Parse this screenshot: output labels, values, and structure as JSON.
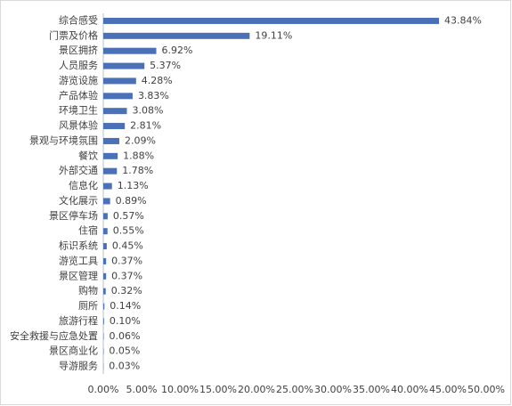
{
  "chart_data": {
    "type": "bar",
    "orientation": "horizontal",
    "categories": [
      "综合感受",
      "门票及价格",
      "景区拥挤",
      "人员服务",
      "游览设施",
      "产品体验",
      "环境卫生",
      "风景体验",
      "景观与环境氛围",
      "餐饮",
      "外部交通",
      "信息化",
      "文化展示",
      "景区停车场",
      "住宿",
      "标识系统",
      "游览工具",
      "景区管理",
      "购物",
      "厕所",
      "旅游行程",
      "安全救援与应急处置",
      "景区商业化",
      "导游服务"
    ],
    "values": [
      43.84,
      19.11,
      6.92,
      5.37,
      4.28,
      3.83,
      3.08,
      2.81,
      2.09,
      1.88,
      1.78,
      1.13,
      0.89,
      0.57,
      0.55,
      0.45,
      0.37,
      0.37,
      0.32,
      0.14,
      0.1,
      0.06,
      0.05,
      0.03
    ],
    "value_labels": [
      "43.84%",
      "19.11%",
      "6.92%",
      "5.37%",
      "4.28%",
      "3.83%",
      "3.08%",
      "2.81%",
      "2.09%",
      "1.88%",
      "1.78%",
      "1.13%",
      "0.89%",
      "0.57%",
      "0.55%",
      "0.45%",
      "0.37%",
      "0.37%",
      "0.32%",
      "0.14%",
      "0.10%",
      "0.06%",
      "0.05%",
      "0.03%"
    ],
    "color": "#4a70b8",
    "xlim": [
      0,
      50
    ],
    "xticks": [
      {
        "value": 0,
        "label": "0.00%"
      },
      {
        "value": 5,
        "label": "5.00%"
      },
      {
        "value": 10,
        "label": "10.00%"
      },
      {
        "value": 15,
        "label": "15.00%"
      },
      {
        "value": 20,
        "label": "20.00%"
      },
      {
        "value": 25,
        "label": "25.00%"
      },
      {
        "value": 30,
        "label": "30.00%"
      },
      {
        "value": 35,
        "label": "35.00%"
      },
      {
        "value": 40,
        "label": "40.00%"
      },
      {
        "value": 45,
        "label": "45.00%"
      },
      {
        "value": 50,
        "label": "50.00%"
      }
    ],
    "grid": false
  }
}
